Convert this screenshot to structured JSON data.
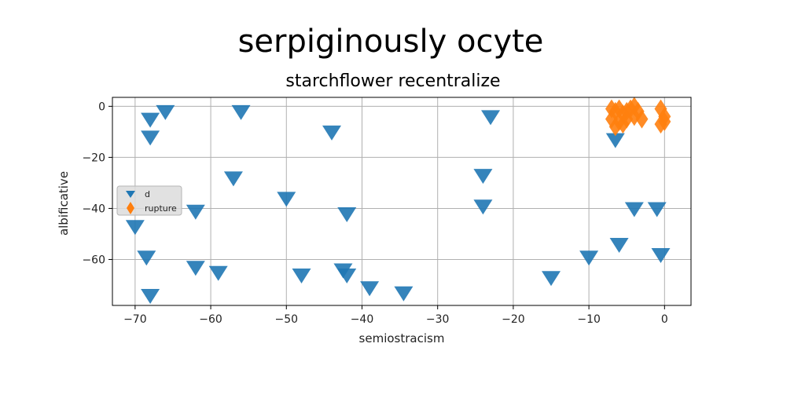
{
  "chart_data": {
    "type": "scatter",
    "suptitle": "serpiginously ocyte",
    "title": "starchflower recentralize",
    "xlabel": "semiostracism",
    "ylabel": "albificative",
    "xlim": [
      -73,
      3.5
    ],
    "ylim": [
      -78,
      3.5
    ],
    "xticks": [
      -70,
      -60,
      -50,
      -40,
      -30,
      -20,
      -10,
      0
    ],
    "yticks": [
      0,
      -20,
      -40,
      -60
    ],
    "grid": true,
    "legend_position": "center-left",
    "series": [
      {
        "name": "d",
        "marker": "triangle-down",
        "color": "#1f77b4",
        "x": [
          -66,
          -68,
          -68,
          -56,
          -44,
          -57,
          -62,
          -50,
          -42,
          -70,
          -68.5,
          -62,
          -59,
          -48,
          -42.5,
          -42,
          -39,
          -34.5,
          -68,
          -24,
          -24,
          -23,
          -15,
          -10,
          -6.5,
          -6,
          -4,
          -1,
          -0.5
        ],
        "y": [
          -2,
          -5,
          -12,
          -2,
          -10,
          -28,
          -41,
          -36,
          -42,
          -47,
          -59,
          -63,
          -65,
          -66,
          -64,
          -66,
          -71,
          -73,
          -74,
          -27,
          -39,
          -4,
          -67,
          -59,
          -13,
          -54,
          -40,
          -40,
          -58
        ]
      },
      {
        "name": "rupture",
        "marker": "diamond",
        "color": "#ff7f0e",
        "x": [
          -7,
          -6.5,
          -6,
          -5.5,
          -5,
          -4.5,
          -4,
          -3.5,
          -7,
          -6,
          -5,
          -4,
          -3,
          -6.5,
          -5.5,
          -0.5,
          0,
          -0.5,
          0
        ],
        "y": [
          -1,
          -2,
          -1,
          -3,
          -2,
          -1,
          0,
          -2,
          -5,
          -6,
          -5,
          -4,
          -5,
          -8,
          -7,
          -1,
          -4,
          -7,
          -6
        ]
      }
    ]
  }
}
